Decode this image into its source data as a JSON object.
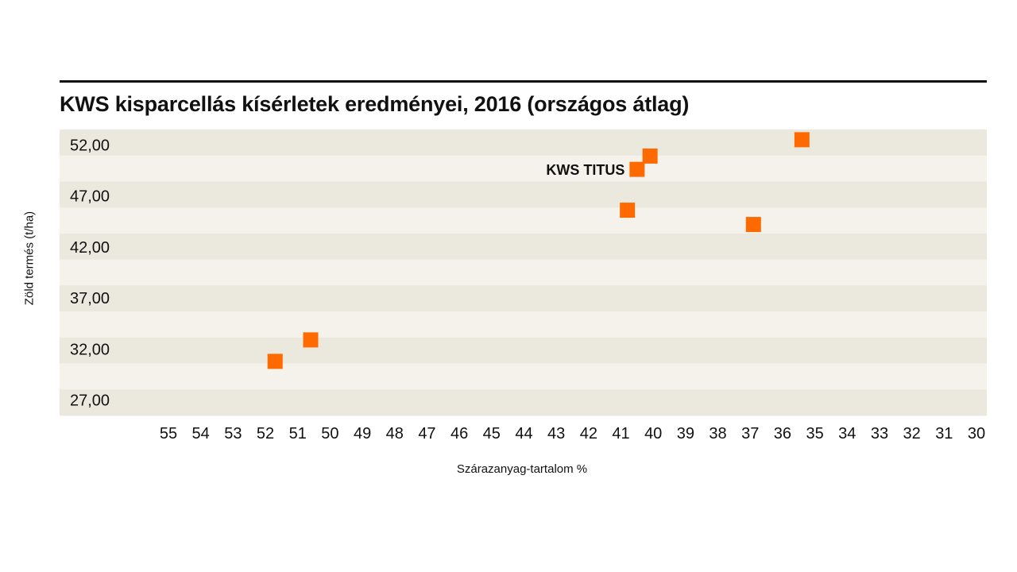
{
  "chart_data": {
    "type": "scatter",
    "title": "KWS kisparcellás kísérletek eredményei, 2016 (országos átlag)",
    "xlabel": "Szárazanyag-tartalom %",
    "ylabel": "Zöld termés (t/ha)",
    "x_reversed": true,
    "xlim": [
      55,
      30
    ],
    "ylim": [
      25.5,
      53.5
    ],
    "x_ticks": [
      "55",
      "54",
      "53",
      "52",
      "51",
      "50",
      "49",
      "48",
      "47",
      "46",
      "45",
      "44",
      "43",
      "42",
      "41",
      "40",
      "39",
      "38",
      "37",
      "36",
      "35",
      "34",
      "33",
      "32",
      "31",
      "30"
    ],
    "y_ticks": [
      "52,00",
      "47,00",
      "42,00",
      "37,00",
      "32,00",
      "27,00"
    ],
    "y_tick_values": [
      52,
      47,
      42,
      37,
      32,
      27
    ],
    "grid": "alternating horizontal bands",
    "marker": "square",
    "marker_color": "#ff6a00",
    "points": [
      {
        "x": 51.7,
        "y": 30.8
      },
      {
        "x": 50.6,
        "y": 32.9
      },
      {
        "x": 40.8,
        "y": 45.6
      },
      {
        "x": 40.5,
        "y": 49.6,
        "label": "KWS TITUS"
      },
      {
        "x": 40.1,
        "y": 50.9
      },
      {
        "x": 36.9,
        "y": 44.2
      },
      {
        "x": 35.4,
        "y": 52.5
      }
    ],
    "band_colors": [
      "#ebe9de",
      "#f4f2ea"
    ]
  }
}
